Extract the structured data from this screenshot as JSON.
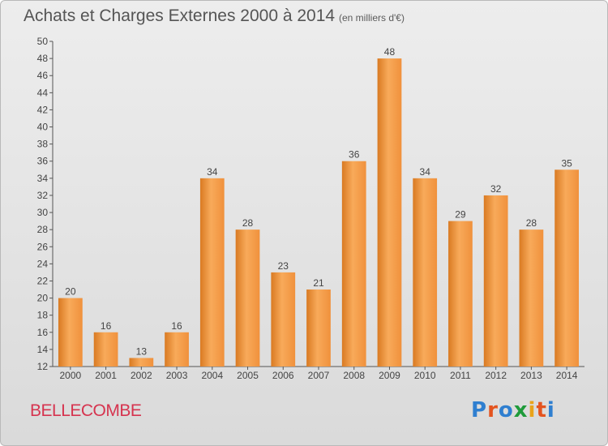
{
  "header": {
    "title": "Achats et Charges Externes 2000 à 2014",
    "unit": "(en milliers d'€)"
  },
  "footer": {
    "location": "BELLECOMBE",
    "logo_text": "Proxiti",
    "logo_letters": [
      {
        "ch": "P",
        "color": "#2f7fd0"
      },
      {
        "ch": "r",
        "color": "#e4541f"
      },
      {
        "ch": "o",
        "color": "#2f7fd0"
      },
      {
        "ch": "x",
        "color": "#1f9b3a"
      },
      {
        "ch": "i",
        "color": "#e9a31a"
      },
      {
        "ch": "t",
        "color": "#e4541f"
      },
      {
        "ch": "i",
        "color": "#2f7fd0"
      }
    ]
  },
  "chart_data": {
    "type": "bar",
    "title": "Achats et Charges Externes 2000 à 2014",
    "subtitle": "(en milliers d'€)",
    "xlabel": "",
    "ylabel": "",
    "categories": [
      "2000",
      "2001",
      "2002",
      "2003",
      "2004",
      "2005",
      "2006",
      "2007",
      "2008",
      "2009",
      "2010",
      "2011",
      "2012",
      "2013",
      "2014"
    ],
    "values": [
      20,
      16,
      13,
      16,
      34,
      28,
      23,
      21,
      36,
      48,
      34,
      29,
      32,
      28,
      35
    ],
    "ylim": [
      12,
      50
    ],
    "yticks": [
      12,
      14,
      16,
      18,
      20,
      22,
      24,
      26,
      28,
      30,
      32,
      34,
      36,
      38,
      40,
      42,
      44,
      46,
      48,
      50
    ],
    "grid": false,
    "legend": "none",
    "bar_color": "#f0913c",
    "bar_color_light": "#f8aa5a",
    "bar_color_dark": "#d97a22"
  }
}
